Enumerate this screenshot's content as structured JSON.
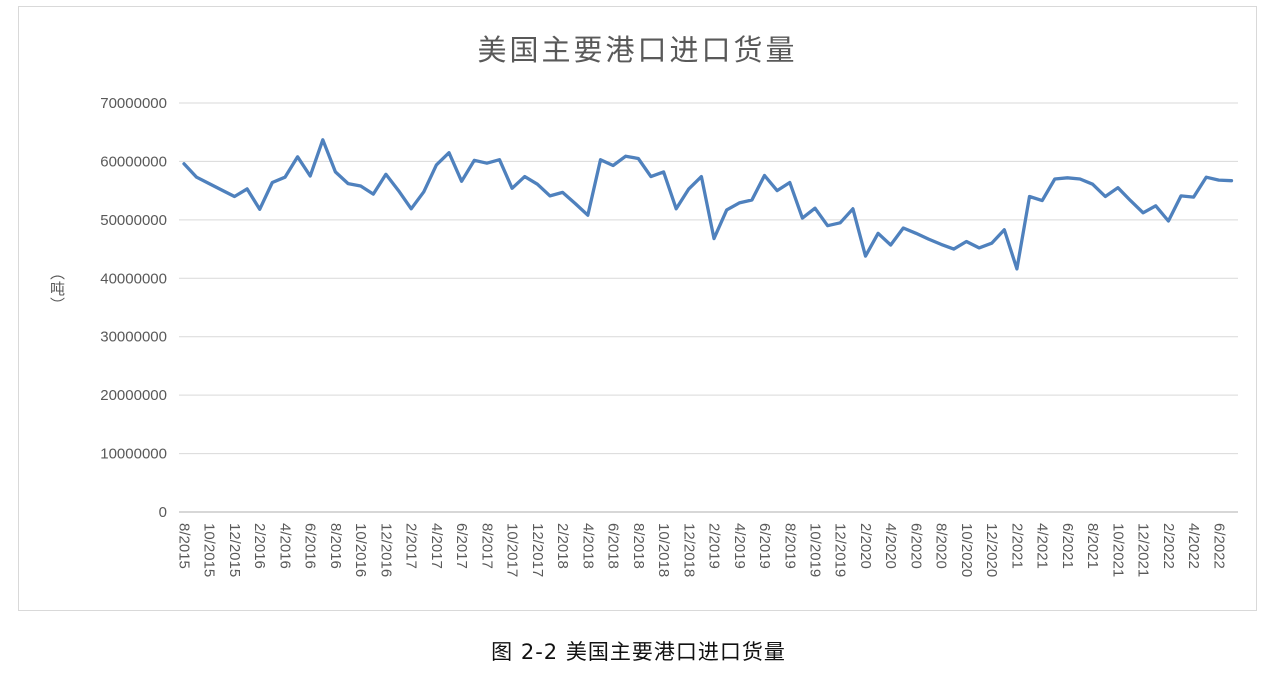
{
  "chart_title": "美国主要港口进口货量",
  "caption": "图 2-2 美国主要港口进口货量",
  "chart_data": {
    "type": "line",
    "title": "美国主要港口进口货量",
    "xlabel": "",
    "ylabel": "（吨）",
    "ylim": [
      0,
      70000000
    ],
    "grid": "horizontal",
    "legend": "none",
    "line_color": "#4F81BD",
    "grid_color": "#D9D9D9",
    "axis_color": "#BFBFBF",
    "text_color": "#595959",
    "y_ticks": [
      0,
      10000000,
      20000000,
      30000000,
      40000000,
      50000000,
      60000000,
      70000000
    ],
    "y_tick_labels": [
      "0",
      "10000000",
      "20000000",
      "30000000",
      "40000000",
      "50000000",
      "60000000",
      "70000000"
    ],
    "x_tick_step": 2,
    "x_tick_labels": [
      "8/2015",
      "10/2015",
      "12/2015",
      "2/2016",
      "4/2016",
      "6/2016",
      "8/2016",
      "10/2016",
      "12/2016",
      "2/2017",
      "4/2017",
      "6/2017",
      "8/2017",
      "10/2017",
      "12/2017",
      "2/2018",
      "4/2018",
      "6/2018",
      "8/2018",
      "10/2018",
      "12/2018",
      "2/2019",
      "4/2019",
      "6/2019",
      "8/2019",
      "10/2019",
      "12/2019",
      "2/2020",
      "4/2020",
      "6/2020",
      "8/2020",
      "10/2020",
      "12/2020",
      "2/2021",
      "4/2021",
      "6/2021",
      "8/2021",
      "10/2021",
      "12/2021",
      "2/2022",
      "4/2022",
      "6/2022"
    ],
    "categories": [
      "8/2015",
      "9/2015",
      "10/2015",
      "11/2015",
      "12/2015",
      "1/2016",
      "2/2016",
      "3/2016",
      "4/2016",
      "5/2016",
      "6/2016",
      "7/2016",
      "8/2016",
      "9/2016",
      "10/2016",
      "11/2016",
      "12/2016",
      "1/2017",
      "2/2017",
      "3/2017",
      "4/2017",
      "5/2017",
      "6/2017",
      "7/2017",
      "8/2017",
      "9/2017",
      "10/2017",
      "11/2017",
      "12/2017",
      "1/2018",
      "2/2018",
      "3/2018",
      "4/2018",
      "5/2018",
      "6/2018",
      "7/2018",
      "8/2018",
      "9/2018",
      "10/2018",
      "11/2018",
      "12/2018",
      "1/2019",
      "2/2019",
      "3/2019",
      "4/2019",
      "5/2019",
      "6/2019",
      "7/2019",
      "8/2019",
      "9/2019",
      "10/2019",
      "11/2019",
      "12/2019",
      "1/2020",
      "2/2020",
      "3/2020",
      "4/2020",
      "5/2020",
      "6/2020",
      "7/2020",
      "8/2020",
      "9/2020",
      "10/2020",
      "11/2020",
      "12/2020",
      "1/2021",
      "2/2021",
      "3/2021",
      "4/2021",
      "5/2021",
      "6/2021",
      "7/2021",
      "8/2021",
      "9/2021",
      "10/2021",
      "11/2021",
      "12/2021",
      "1/2022",
      "2/2022",
      "3/2022",
      "4/2022",
      "5/2022",
      "6/2022",
      "7/2022"
    ],
    "values": [
      59600000,
      57300000,
      56200000,
      55100000,
      54000000,
      55300000,
      51800000,
      56400000,
      57300000,
      60800000,
      57500000,
      63700000,
      58200000,
      56200000,
      55800000,
      54400000,
      57800000,
      55000000,
      51900000,
      54800000,
      59400000,
      61500000,
      56600000,
      60200000,
      59700000,
      60300000,
      55400000,
      57400000,
      56100000,
      54100000,
      54700000,
      52800000,
      50800000,
      60300000,
      59300000,
      60900000,
      60500000,
      57400000,
      58200000,
      51900000,
      55300000,
      57400000,
      46800000,
      51700000,
      52900000,
      53400000,
      57600000,
      55000000,
      56400000,
      50300000,
      52000000,
      49000000,
      49500000,
      51900000,
      43800000,
      47700000,
      45700000,
      48600000,
      47700000,
      46700000,
      45800000,
      45000000,
      46300000,
      45200000,
      46000000,
      48300000,
      41600000,
      54000000,
      53300000,
      57000000,
      57200000,
      57000000,
      56100000,
      54000000,
      55500000,
      53300000,
      51200000,
      52400000,
      49800000,
      54100000,
      53900000,
      57300000,
      56800000,
      56700000
    ]
  }
}
